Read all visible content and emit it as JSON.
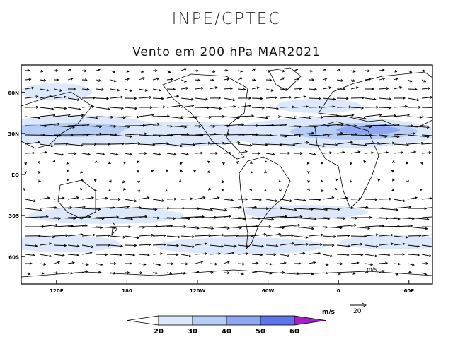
{
  "header": {
    "title": "INPE/CPTEC",
    "subtitle": "Vento em 200 hPa MAR2021"
  },
  "map": {
    "lat_labels": [
      "60N",
      "30N",
      "EQ",
      "30S",
      "60S"
    ],
    "lat_values": [
      60,
      30,
      0,
      -30,
      -60
    ],
    "lon_labels": [
      "120E",
      "180",
      "120W",
      "60W",
      "0",
      "60E"
    ],
    "lon_values": [
      120,
      180,
      240,
      300,
      360,
      420
    ],
    "lon_range": [
      90,
      440
    ],
    "lat_range": [
      -80,
      80
    ],
    "ref_vector": {
      "units": "m/s",
      "value": "20"
    },
    "overlay_ref": "m/s"
  },
  "colorbar": {
    "units": "m/s",
    "ticks": [
      "20",
      "30",
      "40",
      "50",
      "60"
    ],
    "colors": [
      "#ffffff",
      "#dde9fb",
      "#b6cdf5",
      "#8fa7f0",
      "#5e74e8",
      "#a620c9"
    ]
  }
}
